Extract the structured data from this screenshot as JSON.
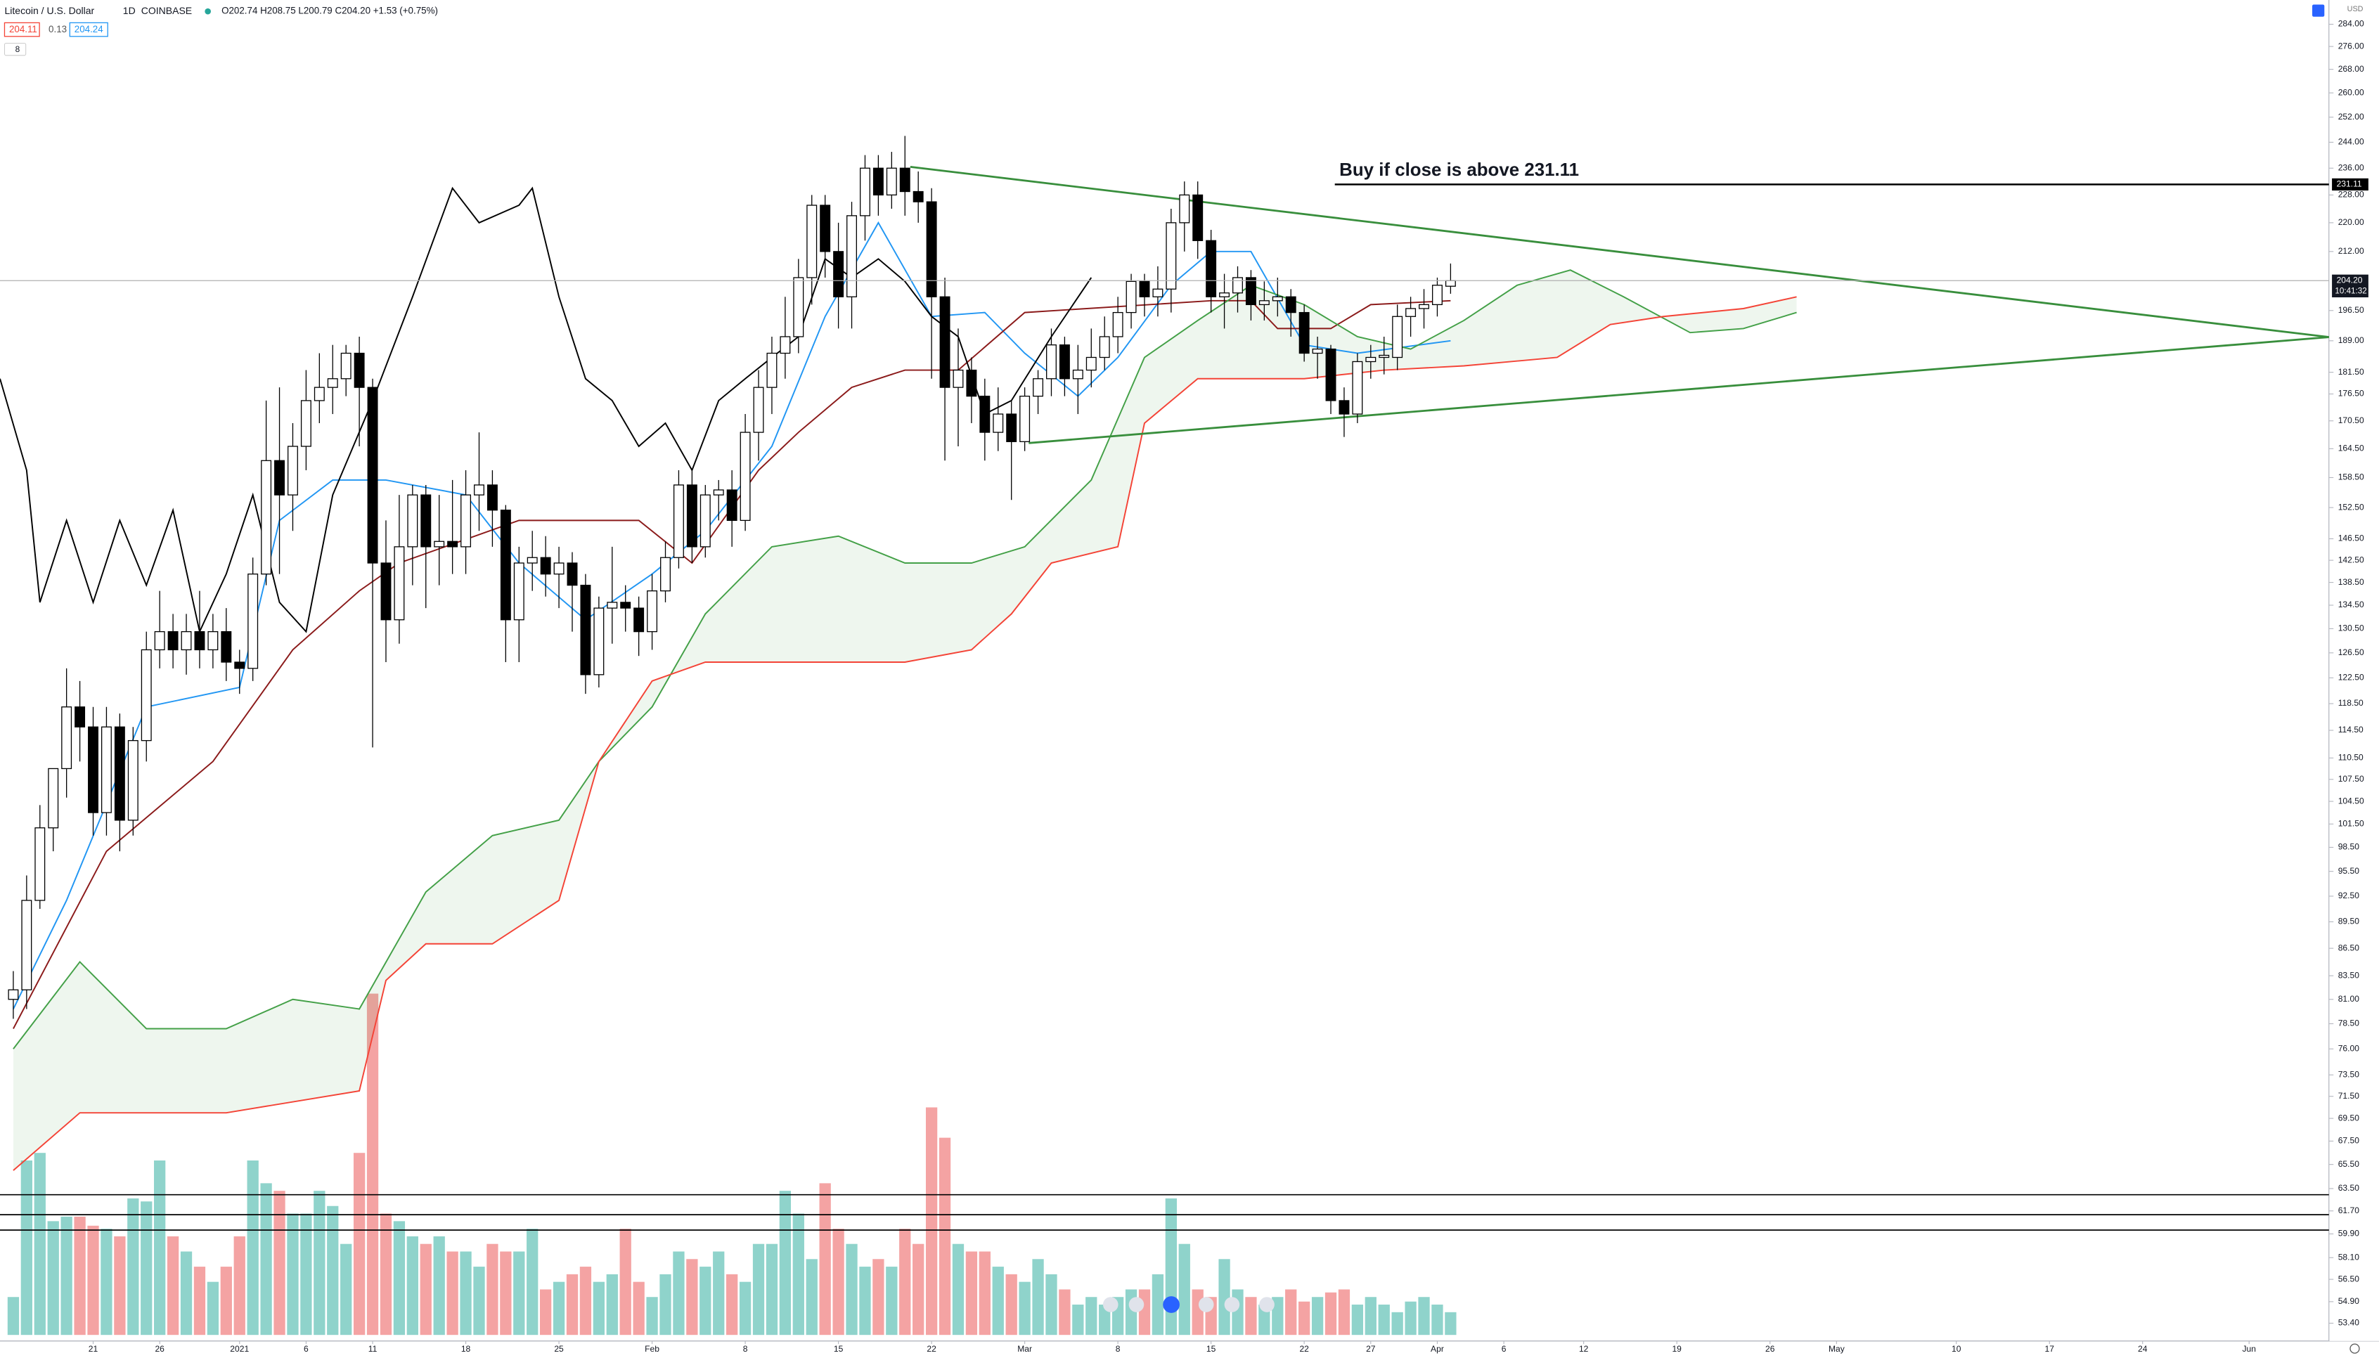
{
  "chart_data": {
    "type": "candlestick",
    "title": "Litecoin / U.S. Dollar",
    "interval": "1D",
    "exchange": "COINBASE",
    "ohlc_legend": "O202.74 H208.75 L200.79 C204.20 +1.53 (+0.75%)",
    "indicator_values": [
      "204.11",
      "0.13",
      "204.24"
    ],
    "indicator_count": "8",
    "currency": "USD",
    "countdown": "10:41:32",
    "log_scale": true,
    "grid": false,
    "xlim": [
      -1,
      174
    ],
    "ylim": [
      52.6,
      293
    ],
    "xticks": [
      {
        "value": 6,
        "label": "21"
      },
      {
        "value": 11,
        "label": "26"
      },
      {
        "value": 17,
        "label": "2021"
      },
      {
        "value": 22,
        "label": "6"
      },
      {
        "value": 27,
        "label": "11"
      },
      {
        "value": 34,
        "label": "18"
      },
      {
        "value": 41,
        "label": "25"
      },
      {
        "value": 48,
        "label": "Feb"
      },
      {
        "value": 55,
        "label": "8"
      },
      {
        "value": 62,
        "label": "15"
      },
      {
        "value": 69,
        "label": "22"
      },
      {
        "value": 76,
        "label": "Mar"
      },
      {
        "value": 83,
        "label": "8"
      },
      {
        "value": 90,
        "label": "15"
      },
      {
        "value": 97,
        "label": "22"
      },
      {
        "value": 102,
        "label": "27"
      },
      {
        "value": 107,
        "label": "Apr"
      },
      {
        "value": 112,
        "label": "6"
      },
      {
        "value": 118,
        "label": "12"
      },
      {
        "value": 125,
        "label": "19"
      },
      {
        "value": 132,
        "label": "26"
      },
      {
        "value": 137,
        "label": "May"
      },
      {
        "value": 146,
        "label": "10"
      },
      {
        "value": 153,
        "label": "17"
      },
      {
        "value": 160,
        "label": "24"
      },
      {
        "value": 168,
        "label": "Jun"
      }
    ],
    "yticks": [
      {
        "value": 284,
        "label": "284.00"
      },
      {
        "value": 276,
        "label": "276.00"
      },
      {
        "value": 268,
        "label": "268.00"
      },
      {
        "value": 260,
        "label": "260.00"
      },
      {
        "value": 252,
        "label": "252.00"
      },
      {
        "value": 244,
        "label": "244.00"
      },
      {
        "value": 236,
        "label": "236.00"
      },
      {
        "value": 228,
        "label": "228.00"
      },
      {
        "value": 220,
        "label": "220.00"
      },
      {
        "value": 212,
        "label": "212.00"
      },
      {
        "value": 196.5,
        "label": "196.50"
      },
      {
        "value": 189,
        "label": "189.00"
      },
      {
        "value": 181.5,
        "label": "181.50"
      },
      {
        "value": 176.5,
        "label": "176.50"
      },
      {
        "value": 170.5,
        "label": "170.50"
      },
      {
        "value": 164.5,
        "label": "164.50"
      },
      {
        "value": 158.5,
        "label": "158.50"
      },
      {
        "value": 152.5,
        "label": "152.50"
      },
      {
        "value": 146.5,
        "label": "146.50"
      },
      {
        "value": 142.5,
        "label": "142.50"
      },
      {
        "value": 138.5,
        "label": "138.50"
      },
      {
        "value": 134.5,
        "label": "134.50"
      },
      {
        "value": 130.5,
        "label": "130.50"
      },
      {
        "value": 126.5,
        "label": "126.50"
      },
      {
        "value": 122.5,
        "label": "122.50"
      },
      {
        "value": 118.5,
        "label": "118.50"
      },
      {
        "value": 114.5,
        "label": "114.50"
      },
      {
        "value": 110.5,
        "label": "110.50"
      },
      {
        "value": 107.5,
        "label": "107.50"
      },
      {
        "value": 104.5,
        "label": "104.50"
      },
      {
        "value": 101.5,
        "label": "101.50"
      },
      {
        "value": 98.5,
        "label": "98.50"
      },
      {
        "value": 95.5,
        "label": "95.50"
      },
      {
        "value": 92.5,
        "label": "92.50"
      },
      {
        "value": 89.5,
        "label": "89.50"
      },
      {
        "value": 86.5,
        "label": "86.50"
      },
      {
        "value": 83.5,
        "label": "83.50"
      },
      {
        "value": 81,
        "label": "81.00"
      },
      {
        "value": 78.5,
        "label": "78.50"
      },
      {
        "value": 76,
        "label": "76.00"
      },
      {
        "value": 73.5,
        "label": "73.50"
      },
      {
        "value": 71.5,
        "label": "71.50"
      },
      {
        "value": 69.5,
        "label": "69.50"
      },
      {
        "value": 67.5,
        "label": "67.50"
      },
      {
        "value": 65.5,
        "label": "65.50"
      },
      {
        "value": 63.5,
        "label": "63.50"
      },
      {
        "value": 61.7,
        "label": "61.70"
      },
      {
        "value": 59.9,
        "label": "59.90"
      },
      {
        "value": 58.1,
        "label": "58.10"
      },
      {
        "value": 56.5,
        "label": "56.50"
      },
      {
        "value": 54.9,
        "label": "54.90"
      },
      {
        "value": 53.4,
        "label": "53.40"
      }
    ],
    "open": [
      81,
      82,
      92,
      101,
      109,
      118,
      115,
      103,
      115,
      102,
      113,
      127,
      130,
      127,
      130,
      127,
      130,
      125,
      124,
      140,
      162,
      155,
      165,
      175,
      178,
      180,
      186,
      178,
      142,
      132,
      145,
      155,
      145,
      146,
      145,
      155,
      157,
      152,
      132,
      142,
      143,
      140,
      142,
      138,
      123,
      134,
      135,
      134,
      130,
      137,
      143,
      157,
      145,
      155,
      156,
      150,
      168,
      178,
      186,
      190,
      205,
      225,
      212,
      200,
      222,
      236,
      228,
      236,
      229,
      226,
      200,
      178,
      182,
      176,
      168,
      172,
      166,
      176,
      180,
      188,
      180,
      182,
      185,
      190,
      196,
      204,
      200,
      202,
      220,
      228,
      215,
      200,
      201,
      205,
      198,
      199,
      200,
      196,
      186,
      187,
      175,
      172,
      184,
      185,
      185,
      195,
      197,
      198,
      202.74
    ],
    "high": [
      84,
      95,
      104,
      108,
      124,
      122,
      118,
      118,
      117,
      115,
      130,
      137,
      133,
      133,
      137,
      133,
      134,
      127,
      143,
      175,
      178,
      170,
      182,
      186,
      188,
      188,
      190,
      180,
      150,
      155,
      157,
      157,
      155,
      158,
      160,
      168,
      160,
      153,
      145,
      148,
      147,
      145,
      144,
      140,
      136,
      145,
      138,
      136,
      140,
      146,
      160,
      160,
      157,
      158,
      160,
      172,
      182,
      190,
      200,
      210,
      228,
      228,
      220,
      226,
      240,
      240,
      241,
      246,
      235,
      230,
      205,
      192,
      185,
      180,
      178,
      175,
      178,
      182,
      192,
      190,
      188,
      192,
      195,
      200,
      206,
      206,
      208,
      224,
      232,
      232,
      218,
      206,
      208,
      207,
      204,
      205,
      202,
      198,
      190,
      188,
      178,
      186,
      188,
      190,
      198,
      200,
      202,
      205,
      208.75
    ],
    "low": [
      79,
      80,
      91,
      98,
      105,
      110,
      100,
      100,
      98,
      100,
      110,
      124,
      124,
      123,
      124,
      124,
      122,
      120,
      122,
      138,
      140,
      148,
      160,
      170,
      172,
      176,
      165,
      112,
      125,
      128,
      138,
      134,
      138,
      140,
      140,
      148,
      145,
      125,
      125,
      137,
      136,
      134,
      130,
      120,
      121,
      128,
      130,
      126,
      127,
      135,
      141,
      142,
      143,
      150,
      145,
      148,
      162,
      172,
      180,
      186,
      198,
      205,
      192,
      192,
      215,
      222,
      224,
      222,
      220,
      180,
      162,
      165,
      170,
      162,
      164,
      154,
      164,
      172,
      176,
      176,
      172,
      178,
      182,
      186,
      192,
      195,
      195,
      196,
      212,
      210,
      196,
      192,
      196,
      194,
      194,
      195,
      190,
      184,
      180,
      172,
      167,
      170,
      180,
      181,
      182,
      190,
      192,
      195,
      200.79
    ],
    "close": [
      82,
      92,
      101,
      109,
      118,
      115,
      103,
      115,
      102,
      113,
      127,
      130,
      127,
      130,
      127,
      130,
      125,
      124,
      140,
      162,
      155,
      165,
      175,
      178,
      180,
      186,
      178,
      142,
      132,
      145,
      155,
      145,
      146,
      145,
      155,
      157,
      152,
      132,
      142,
      143,
      140,
      142,
      138,
      123,
      134,
      135,
      134,
      130,
      137,
      143,
      157,
      145,
      155,
      156,
      150,
      168,
      178,
      186,
      190,
      205,
      225,
      212,
      200,
      222,
      236,
      228,
      236,
      229,
      226,
      200,
      178,
      182,
      176,
      168,
      172,
      166,
      176,
      180,
      188,
      180,
      182,
      185,
      190,
      196,
      204,
      200,
      202,
      220,
      228,
      215,
      200,
      201,
      205,
      198,
      199,
      200,
      196,
      186,
      187,
      175,
      172,
      184,
      185,
      185.5,
      195,
      197,
      198,
      203,
      204.2
    ],
    "volume": [
      25,
      115,
      120,
      75,
      78,
      78,
      72,
      70,
      65,
      90,
      88,
      115,
      65,
      55,
      45,
      35,
      45,
      65,
      115,
      100,
      95,
      80,
      80,
      95,
      85,
      60,
      120,
      225,
      80,
      75,
      65,
      60,
      65,
      55,
      55,
      45,
      60,
      55,
      55,
      70,
      30,
      35,
      40,
      45,
      35,
      40,
      70,
      35,
      25,
      40,
      55,
      50,
      45,
      55,
      40,
      35,
      60,
      60,
      95,
      80,
      50,
      100,
      70,
      60,
      45,
      50,
      45,
      70,
      60,
      150,
      130,
      60,
      55,
      55,
      45,
      40,
      35,
      50,
      40,
      30,
      20,
      25,
      20,
      25,
      30,
      30,
      40,
      90,
      60,
      30,
      25,
      50,
      30,
      25,
      20,
      25,
      30,
      22,
      25,
      28,
      30,
      20,
      25,
      20,
      15,
      22,
      25,
      20,
      15
    ],
    "series": [
      {
        "name": "Tenkan",
        "color": "#2196f3",
        "x": [
          0,
          4,
          10,
          17,
          20,
          24,
          28,
          34,
          38,
          43,
          48,
          52,
          57,
          61,
          65,
          69,
          73,
          76,
          80,
          83,
          87,
          90,
          93,
          97,
          101,
          108
        ],
        "values": [
          80,
          92,
          118,
          121,
          150,
          158,
          158,
          155,
          142,
          132,
          140,
          148,
          165,
          195,
          220,
          195,
          196,
          186,
          176,
          185,
          203,
          212,
          212,
          188,
          186,
          189
        ]
      },
      {
        "name": "Kijun",
        "color": "#8b1a1a",
        "x": [
          0,
          7,
          15,
          21,
          26,
          29,
          38,
          47,
          51,
          56,
          59,
          63,
          67,
          71,
          76,
          90,
          93,
          95,
          99,
          102,
          108
        ],
        "values": [
          78,
          98,
          110,
          127,
          137,
          142,
          150,
          150,
          142,
          160,
          168,
          178,
          182,
          182,
          196,
          199,
          199,
          192,
          192,
          198,
          199
        ]
      },
      {
        "name": "Span A",
        "color": "#43a047",
        "x": [
          0,
          5,
          10,
          16,
          21,
          26,
          31,
          36,
          41,
          44,
          48,
          52,
          57,
          62,
          67,
          72,
          76,
          81,
          85,
          89,
          93,
          97,
          101,
          105,
          109,
          113,
          117,
          121,
          126,
          130,
          134
        ],
        "values": [
          76,
          85,
          78,
          78,
          81,
          80,
          93,
          100,
          102,
          110,
          118,
          133,
          145,
          147,
          142,
          142,
          145,
          158,
          185,
          194,
          203,
          198,
          190,
          187,
          194,
          203,
          207,
          200,
          191,
          192,
          196
        ]
      },
      {
        "name": "Span B",
        "color": "#f44336",
        "x": [
          0,
          5,
          16,
          26,
          28,
          31,
          36,
          41,
          44,
          48,
          52,
          57,
          67,
          72,
          75,
          78,
          83,
          85,
          89,
          97,
          103,
          109,
          116,
          120,
          124,
          130,
          134
        ],
        "values": [
          65,
          70,
          70,
          72,
          83,
          87,
          87,
          92,
          110,
          122,
          125,
          125,
          125,
          127,
          133,
          142,
          145,
          170,
          180,
          180,
          182,
          183,
          185,
          193,
          195,
          197,
          200
        ]
      },
      {
        "name": "Chikou",
        "color": "#000000",
        "x": [
          -1,
          1,
          2,
          4,
          6,
          8,
          10,
          12,
          14,
          16,
          18,
          20,
          22,
          24,
          27,
          30,
          33,
          35,
          38,
          39,
          41,
          43,
          45,
          47,
          49,
          51,
          53,
          55,
          57,
          59,
          61,
          63,
          65,
          67,
          69,
          71,
          73,
          75,
          78,
          81
        ],
        "values": [
          180,
          160,
          135,
          150,
          135,
          150,
          138,
          152,
          130,
          140,
          155,
          135,
          130,
          155,
          175,
          200,
          230,
          220,
          225,
          230,
          200,
          180,
          175,
          165,
          170,
          160,
          175,
          180,
          185,
          190,
          210,
          205,
          210,
          204,
          195,
          190,
          172,
          175,
          190,
          205
        ]
      }
    ],
    "trend_lines": [
      {
        "color": "#388e3c",
        "x": [
          67.4,
          174
        ],
        "values": [
          236.4,
          189.9
        ]
      },
      {
        "color": "#388e3c",
        "x": [
          76.3,
          174
        ],
        "values": [
          165.7,
          189.9
        ]
      }
    ],
    "buy_level": {
      "label": "Buy if close is above 231.11",
      "value": 231.11,
      "x_start": 99.3
    },
    "last_price": {
      "value": 204.2,
      "value_label": "204.20"
    },
    "horizontal_lines": [
      63.0,
      61.4,
      60.2
    ],
    "up_color": "#ffffff",
    "down_color": "#000000",
    "volume_up_color": "#8fd3cb",
    "volume_down_color": "#f4a3a3"
  }
}
